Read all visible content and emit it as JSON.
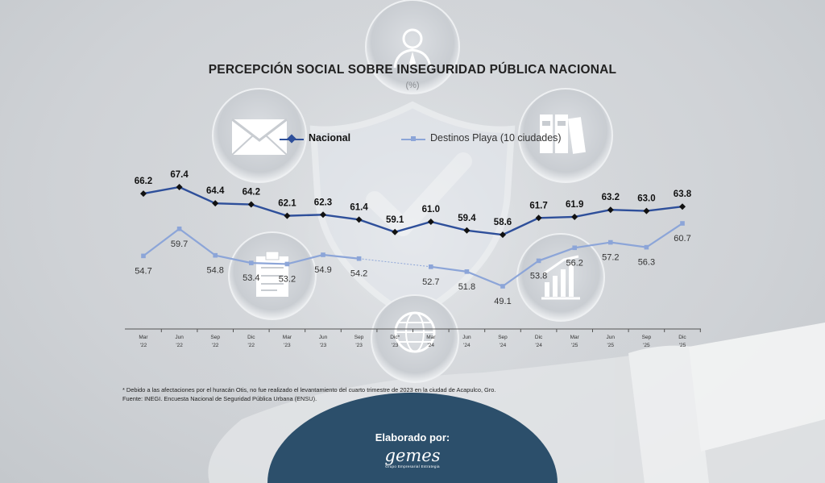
{
  "chart_data": {
    "type": "line",
    "title": "PERCEPCIÓN SOCIAL SOBRE INSEGURIDAD PÚBLICA NACIONAL",
    "subtitle": "(%)",
    "categories": [
      "Mar '22",
      "Jun '22",
      "Sep '22",
      "Dic '22",
      "Mar '23",
      "Jun '23",
      "Sep '23",
      "Dic* '23",
      "Mar '24",
      "Jun '24",
      "Sep '24",
      "Dic '24",
      "Mar '25",
      "Jun '25",
      "Sep '25",
      "Dic '25"
    ],
    "category_lines": [
      [
        "Mar",
        "'22"
      ],
      [
        "Jun",
        "'22"
      ],
      [
        "Sep",
        "'22"
      ],
      [
        "Dic",
        "'22"
      ],
      [
        "Mar",
        "'23"
      ],
      [
        "Jun",
        "'23"
      ],
      [
        "Sep",
        "'23"
      ],
      [
        "Dic*",
        "'23"
      ],
      [
        "Mar",
        "'24"
      ],
      [
        "Jun",
        "'24"
      ],
      [
        "Sep",
        "'24"
      ],
      [
        "Dic",
        "'24"
      ],
      [
        "Mar",
        "'25"
      ],
      [
        "Jun",
        "'25"
      ],
      [
        "Sep",
        "'25"
      ],
      [
        "Dic",
        "'25"
      ]
    ],
    "series": [
      {
        "name": "Nacional",
        "color": "#2e4f9a",
        "marker": "diamond",
        "values": [
          66.2,
          67.4,
          64.4,
          64.2,
          62.1,
          62.3,
          61.4,
          59.1,
          61.0,
          59.4,
          58.6,
          61.7,
          61.9,
          63.2,
          63.0,
          63.8
        ]
      },
      {
        "name": "Destinos Playa (10 ciudades)",
        "color": "#8ca5d8",
        "marker": "square",
        "gap_index": 7,
        "values": [
          54.7,
          59.7,
          54.8,
          53.4,
          53.2,
          54.9,
          54.2,
          null,
          52.7,
          51.8,
          49.1,
          53.8,
          56.2,
          57.2,
          56.3,
          60.7
        ]
      }
    ],
    "legend_position": "top",
    "grid": false
  },
  "footnotes": [
    "* Debido a las afectaciones por el huracán Otis, no fue realizado el levantamiento del cuarto trimestre de 2023 en la ciudad de Acapulco, Gro.",
    "Fuente: INEGI.  Encuesta Nacional de Seguridad Pública Urbana (ENSU)."
  ],
  "credit": {
    "label": "Elaborado por:",
    "brand": "gemes",
    "brand_subtitle": "Grupo Empresarial Estrategia",
    "brand_color": "#2c4f6b"
  },
  "decorative_icons": [
    "person-icon",
    "envelope-icon",
    "binders-icon",
    "shield-check-icon",
    "clipboard-icon",
    "growth-chart-icon",
    "globe-icon",
    "hand-icon"
  ]
}
